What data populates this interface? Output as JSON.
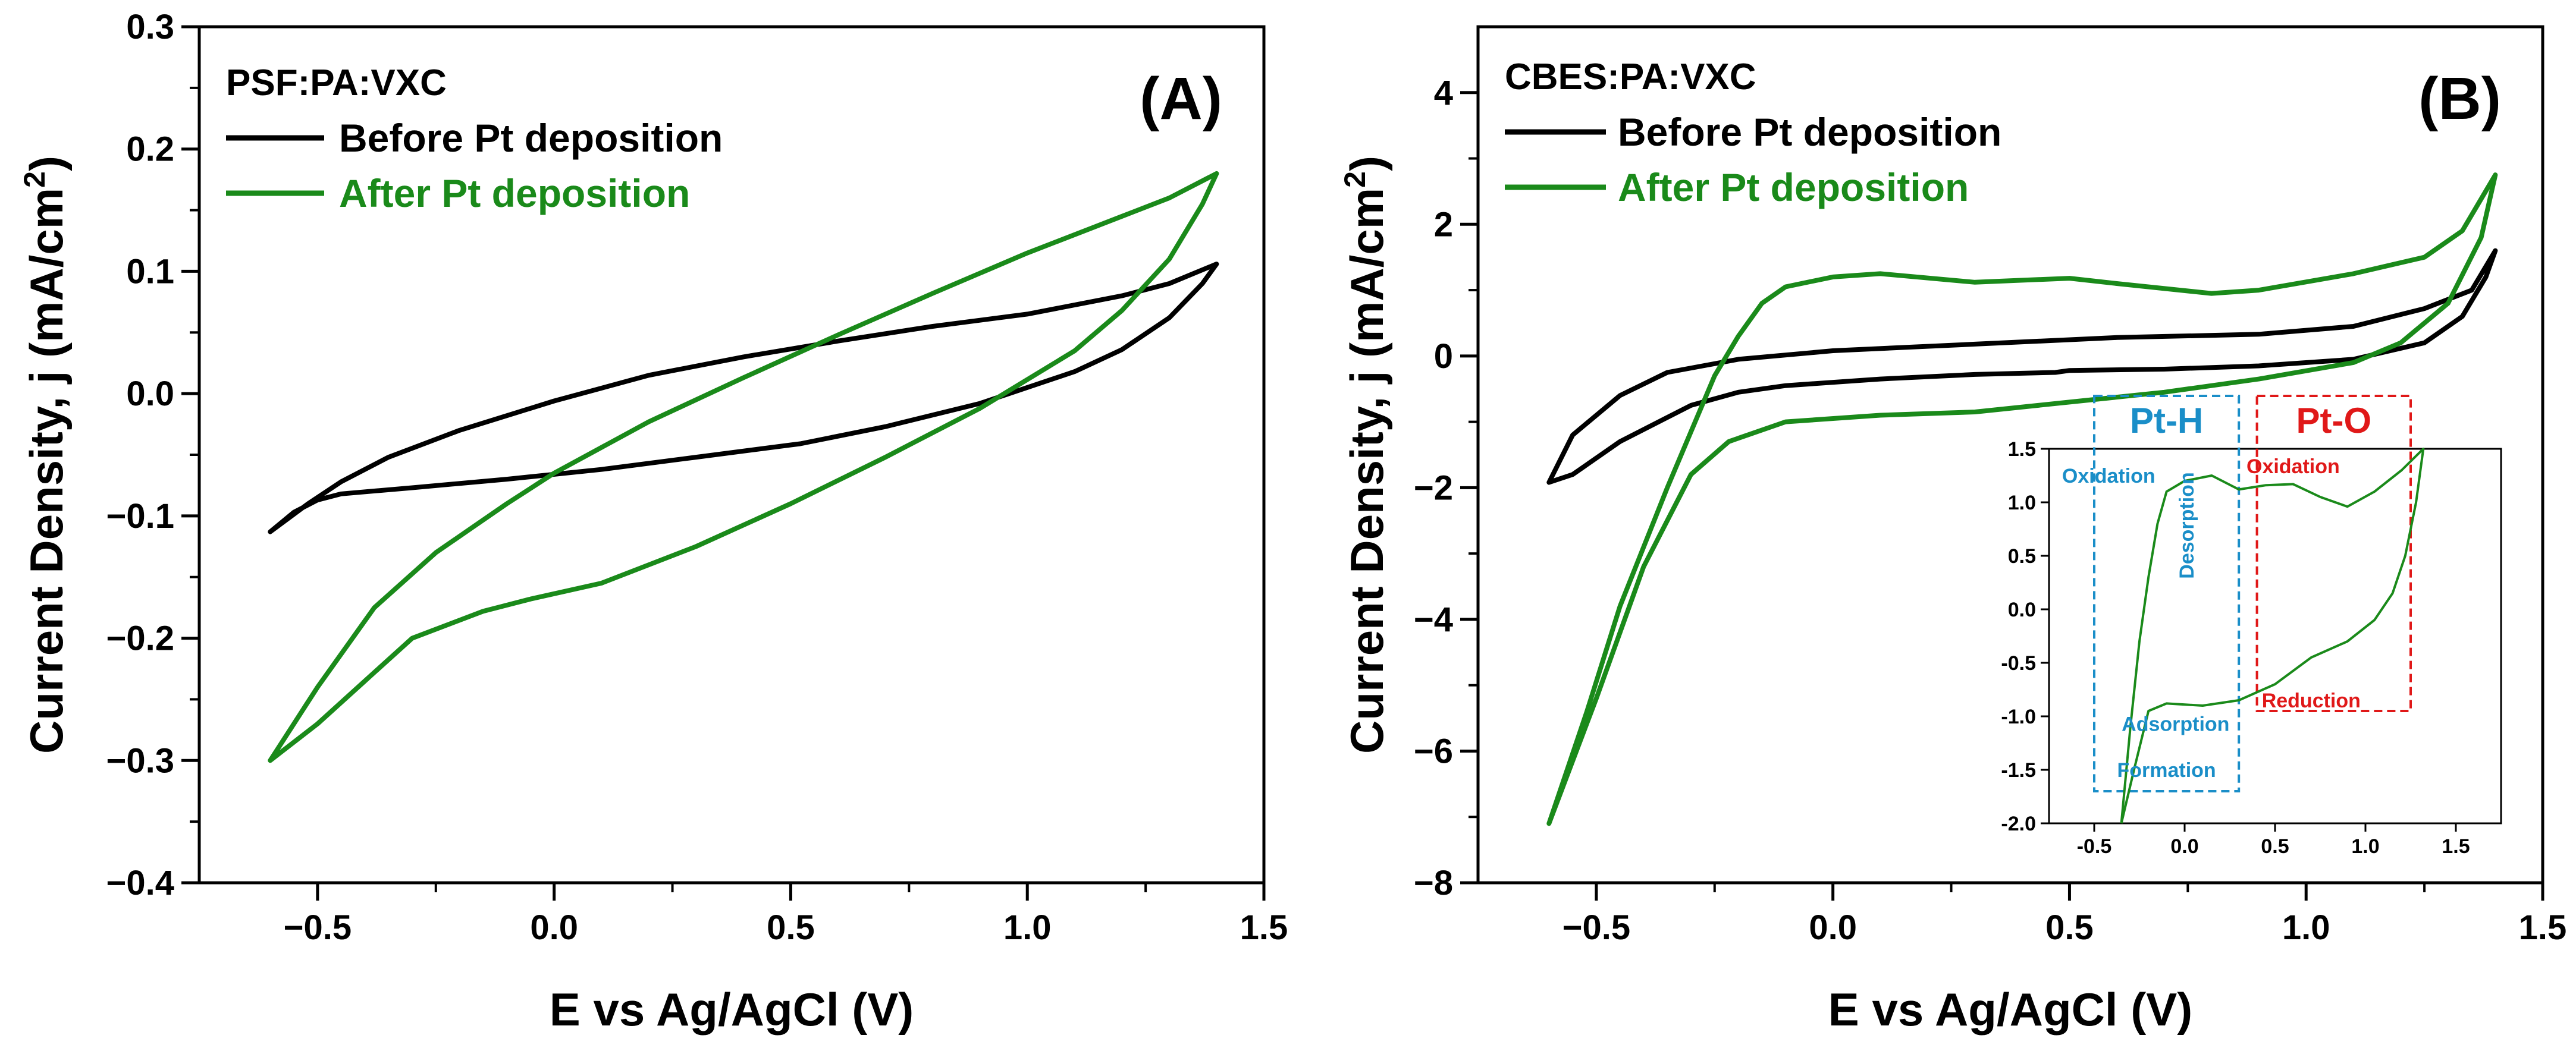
{
  "colors": {
    "before": "#000000",
    "after": "#1a8a1a",
    "pth": "#1a8ec8",
    "pto": "#e01818"
  },
  "chart_data": [
    {
      "type": "line",
      "panel_label": "(A)",
      "sample": "PSF:PA:VXC",
      "xlabel": "E vs Ag/AgCl (V)",
      "ylabel": "Current Density, j (mA/cm",
      "ylabel_sup": "2",
      "ylabel_end": ")",
      "xlim": [
        -0.75,
        1.5
      ],
      "ylim": [
        -0.4,
        0.3
      ],
      "xticks": [
        -0.5,
        0.0,
        0.5,
        1.0,
        1.5
      ],
      "xtick_labels": [
        "−0.5",
        "0.0",
        "0.5",
        "1.0",
        "1.5"
      ],
      "yticks": [
        -0.4,
        -0.3,
        -0.2,
        -0.1,
        0.0,
        0.1,
        0.2,
        0.3
      ],
      "ytick_labels": [
        "−0.4",
        "−0.3",
        "−0.2",
        "−0.1",
        "0.0",
        "0.1",
        "0.2",
        "0.3"
      ],
      "series": [
        {
          "name": "Before Pt deposition",
          "color_key": "before",
          "points": [
            [
              -0.6,
              -0.113
            ],
            [
              -0.55,
              -0.097
            ],
            [
              -0.5,
              -0.087
            ],
            [
              -0.45,
              -0.082
            ],
            [
              -0.3,
              -0.077
            ],
            [
              -0.1,
              -0.07
            ],
            [
              0.1,
              -0.062
            ],
            [
              0.3,
              -0.052
            ],
            [
              0.5,
              -0.042
            ],
            [
              0.52,
              -0.041
            ],
            [
              0.7,
              -0.027
            ],
            [
              0.9,
              -0.008
            ],
            [
              1.1,
              0.018
            ],
            [
              1.2,
              0.036
            ],
            [
              1.3,
              0.062
            ],
            [
              1.37,
              0.09
            ],
            [
              1.4,
              0.106
            ],
            [
              1.3,
              0.09
            ],
            [
              1.2,
              0.08
            ],
            [
              1.0,
              0.065
            ],
            [
              0.8,
              0.055
            ],
            [
              0.6,
              0.043
            ],
            [
              0.4,
              0.03
            ],
            [
              0.2,
              0.015
            ],
            [
              0.0,
              -0.006
            ],
            [
              -0.2,
              -0.03
            ],
            [
              -0.35,
              -0.052
            ],
            [
              -0.45,
              -0.072
            ],
            [
              -0.52,
              -0.09
            ],
            [
              -0.6,
              -0.113
            ]
          ]
        },
        {
          "name": "After Pt deposition",
          "color_key": "after",
          "points": [
            [
              -0.6,
              -0.3
            ],
            [
              -0.5,
              -0.27
            ],
            [
              -0.4,
              -0.235
            ],
            [
              -0.3,
              -0.2
            ],
            [
              -0.15,
              -0.178
            ],
            [
              -0.05,
              -0.168
            ],
            [
              0.1,
              -0.155
            ],
            [
              0.3,
              -0.125
            ],
            [
              0.5,
              -0.09
            ],
            [
              0.7,
              -0.052
            ],
            [
              0.9,
              -0.012
            ],
            [
              1.1,
              0.035
            ],
            [
              1.2,
              0.068
            ],
            [
              1.3,
              0.11
            ],
            [
              1.37,
              0.155
            ],
            [
              1.4,
              0.18
            ],
            [
              1.3,
              0.16
            ],
            [
              1.2,
              0.145
            ],
            [
              1.0,
              0.115
            ],
            [
              0.8,
              0.082
            ],
            [
              0.6,
              0.048
            ],
            [
              0.4,
              0.013
            ],
            [
              0.2,
              -0.023
            ],
            [
              0.0,
              -0.065
            ],
            [
              -0.1,
              -0.09
            ],
            [
              -0.25,
              -0.13
            ],
            [
              -0.38,
              -0.175
            ],
            [
              -0.5,
              -0.24
            ],
            [
              -0.6,
              -0.3
            ]
          ]
        }
      ]
    },
    {
      "type": "line",
      "panel_label": "(B)",
      "sample": "CBES:PA:VXC",
      "xlabel": "E vs Ag/AgCl (V)",
      "ylabel": "Current Density, j (mA/cm",
      "ylabel_sup": "2",
      "ylabel_end": ")",
      "xlim": [
        -0.75,
        1.5
      ],
      "ylim": [
        -8,
        5
      ],
      "xticks": [
        -0.5,
        0.0,
        0.5,
        1.0,
        1.5
      ],
      "xtick_labels": [
        "−0.5",
        "0.0",
        "0.5",
        "1.0",
        "1.5"
      ],
      "yticks": [
        -8,
        -6,
        -4,
        -2,
        0,
        2,
        4
      ],
      "ytick_labels": [
        "−8",
        "−6",
        "−4",
        "−2",
        "0",
        "2",
        "4"
      ],
      "series": [
        {
          "name": "Before Pt deposition",
          "color_key": "before",
          "points": [
            [
              -0.6,
              -1.92
            ],
            [
              -0.55,
              -1.8
            ],
            [
              -0.45,
              -1.3
            ],
            [
              -0.3,
              -0.75
            ],
            [
              -0.2,
              -0.55
            ],
            [
              -0.1,
              -0.45
            ],
            [
              0.1,
              -0.35
            ],
            [
              0.3,
              -0.28
            ],
            [
              0.47,
              -0.25
            ],
            [
              0.5,
              -0.22
            ],
            [
              0.7,
              -0.2
            ],
            [
              0.9,
              -0.15
            ],
            [
              1.1,
              -0.05
            ],
            [
              1.25,
              0.2
            ],
            [
              1.33,
              0.6
            ],
            [
              1.38,
              1.2
            ],
            [
              1.4,
              1.6
            ],
            [
              1.35,
              1.0
            ],
            [
              1.25,
              0.72
            ],
            [
              1.1,
              0.45
            ],
            [
              0.9,
              0.33
            ],
            [
              0.6,
              0.28
            ],
            [
              0.3,
              0.18
            ],
            [
              0.0,
              0.08
            ],
            [
              -0.2,
              -0.05
            ],
            [
              -0.35,
              -0.25
            ],
            [
              -0.45,
              -0.6
            ],
            [
              -0.55,
              -1.2
            ],
            [
              -0.6,
              -1.92
            ]
          ]
        },
        {
          "name": "After Pt deposition",
          "color_key": "after",
          "points": [
            [
              -0.6,
              -7.1
            ],
            [
              -0.5,
              -5.2
            ],
            [
              -0.4,
              -3.2
            ],
            [
              -0.3,
              -1.8
            ],
            [
              -0.22,
              -1.3
            ],
            [
              -0.1,
              -1.0
            ],
            [
              0.1,
              -0.9
            ],
            [
              0.3,
              -0.85
            ],
            [
              0.5,
              -0.7
            ],
            [
              0.7,
              -0.55
            ],
            [
              0.9,
              -0.35
            ],
            [
              1.1,
              -0.1
            ],
            [
              1.2,
              0.2
            ],
            [
              1.3,
              0.8
            ],
            [
              1.37,
              1.8
            ],
            [
              1.4,
              2.75
            ],
            [
              1.33,
              1.9
            ],
            [
              1.25,
              1.5
            ],
            [
              1.1,
              1.25
            ],
            [
              0.9,
              1.0
            ],
            [
              0.8,
              0.95
            ],
            [
              0.6,
              1.1
            ],
            [
              0.5,
              1.18
            ],
            [
              0.3,
              1.12
            ],
            [
              0.1,
              1.25
            ],
            [
              0.0,
              1.2
            ],
            [
              -0.1,
              1.05
            ],
            [
              -0.15,
              0.8
            ],
            [
              -0.2,
              0.3
            ],
            [
              -0.25,
              -0.3
            ],
            [
              -0.35,
              -2.0
            ],
            [
              -0.45,
              -3.8
            ],
            [
              -0.52,
              -5.4
            ],
            [
              -0.6,
              -7.1
            ]
          ]
        }
      ],
      "inset": {
        "xlim": [
          -0.75,
          1.75
        ],
        "ylim": [
          -2.0,
          1.5
        ],
        "xticks": [
          -0.5,
          0.0,
          0.5,
          1.0,
          1.5
        ],
        "xtick_labels": [
          "-0.5",
          "0.0",
          "0.5",
          "1.0",
          "1.5"
        ],
        "yticks": [
          -2.0,
          -1.5,
          -1.0,
          -0.5,
          0.0,
          0.5,
          1.0,
          1.5
        ],
        "ytick_labels": [
          "-2.0",
          "-1.5",
          "-1.0",
          "-0.5",
          "0.0",
          "0.5",
          "1.0",
          "1.5"
        ],
        "points": [
          [
            -0.35,
            -2.0
          ],
          [
            -0.28,
            -1.5
          ],
          [
            -0.2,
            -0.95
          ],
          [
            -0.1,
            -0.88
          ],
          [
            0.1,
            -0.9
          ],
          [
            0.3,
            -0.85
          ],
          [
            0.5,
            -0.7
          ],
          [
            0.7,
            -0.45
          ],
          [
            0.9,
            -0.3
          ],
          [
            1.05,
            -0.1
          ],
          [
            1.15,
            0.15
          ],
          [
            1.22,
            0.5
          ],
          [
            1.28,
            1.0
          ],
          [
            1.32,
            1.5
          ],
          [
            1.2,
            1.3
          ],
          [
            1.05,
            1.1
          ],
          [
            0.9,
            0.96
          ],
          [
            0.75,
            1.05
          ],
          [
            0.6,
            1.17
          ],
          [
            0.45,
            1.16
          ],
          [
            0.3,
            1.12
          ],
          [
            0.15,
            1.25
          ],
          [
            0.0,
            1.2
          ],
          [
            -0.1,
            1.1
          ],
          [
            -0.15,
            0.8
          ],
          [
            -0.2,
            0.3
          ],
          [
            -0.25,
            -0.3
          ],
          [
            -0.3,
            -1.1
          ],
          [
            -0.35,
            -2.0
          ]
        ],
        "pth_box": {
          "label": "Pt-H",
          "x": [
            -0.5,
            0.3
          ],
          "y": [
            -1.7,
            1.55
          ]
        },
        "pto_box": {
          "label": "Pt-O",
          "x": [
            0.4,
            1.25
          ],
          "y": [
            -0.95,
            1.55
          ]
        },
        "annotations": [
          {
            "text": "Oxidation",
            "group": "pth",
            "x": -0.42,
            "y": 1.25
          },
          {
            "text": "Desorption",
            "group": "pth",
            "x": 0.05,
            "y": 0.85
          },
          {
            "text": "Adsorption",
            "group": "pth",
            "x": -0.05,
            "y": -1.07
          },
          {
            "text": "Formation",
            "group": "pth",
            "x": -0.1,
            "y": -1.5
          },
          {
            "text": "Oxidation",
            "group": "pto",
            "x": 0.6,
            "y": 1.34
          },
          {
            "text": "Reduction",
            "group": "pto",
            "x": 0.7,
            "y": -0.85
          }
        ]
      },
      "legend_placement": "top-left"
    }
  ]
}
